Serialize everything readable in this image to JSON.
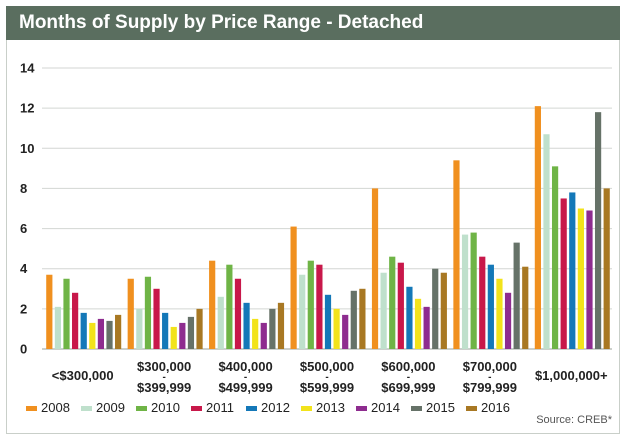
{
  "chart_data": {
    "type": "bar",
    "title": "Months of Supply by Price Range - Detached",
    "ylim": [
      0,
      14
    ],
    "yticks": [
      0,
      2,
      4,
      6,
      8,
      10,
      12,
      14
    ],
    "grid": true,
    "legend_position": "bottom",
    "categories": [
      [
        "<$300,000"
      ],
      [
        "$300,000",
        "-",
        "$399,999"
      ],
      [
        "$400,000",
        "-",
        "$499,999"
      ],
      [
        "$500,000",
        "-",
        "$599,999"
      ],
      [
        "$600,000",
        "-",
        "$699,999"
      ],
      [
        "$700,000",
        "-",
        "$799,999"
      ],
      [
        "$1,000,000+"
      ]
    ],
    "series": [
      {
        "name": "2008",
        "color": "#f0901f",
        "values": [
          3.7,
          3.5,
          4.4,
          6.1,
          8.0,
          9.4,
          12.1
        ]
      },
      {
        "name": "2009",
        "color": "#bfe0cc",
        "values": [
          2.1,
          2.0,
          2.6,
          3.7,
          3.8,
          5.7,
          10.7
        ]
      },
      {
        "name": "2010",
        "color": "#6fb446",
        "values": [
          3.5,
          3.6,
          4.2,
          4.4,
          4.6,
          5.8,
          9.1
        ]
      },
      {
        "name": "2011",
        "color": "#c8184a",
        "values": [
          2.8,
          3.0,
          3.5,
          4.2,
          4.3,
          4.6,
          7.5
        ]
      },
      {
        "name": "2012",
        "color": "#1478b8",
        "values": [
          1.8,
          1.8,
          2.3,
          2.7,
          3.1,
          4.2,
          7.8
        ]
      },
      {
        "name": "2013",
        "color": "#f2e31b",
        "values": [
          1.3,
          1.1,
          1.5,
          2.0,
          2.5,
          3.5,
          7.0
        ]
      },
      {
        "name": "2014",
        "color": "#8e2c8f",
        "values": [
          1.5,
          1.3,
          1.3,
          1.7,
          2.1,
          2.8,
          6.9
        ]
      },
      {
        "name": "2015",
        "color": "#667268",
        "values": [
          1.4,
          1.6,
          2.0,
          2.9,
          4.0,
          5.3,
          11.8
        ]
      },
      {
        "name": "2016",
        "color": "#a87823",
        "values": [
          1.7,
          2.0,
          2.3,
          3.0,
          3.8,
          4.1,
          8.0
        ]
      }
    ],
    "source": "Source: CREB*"
  }
}
